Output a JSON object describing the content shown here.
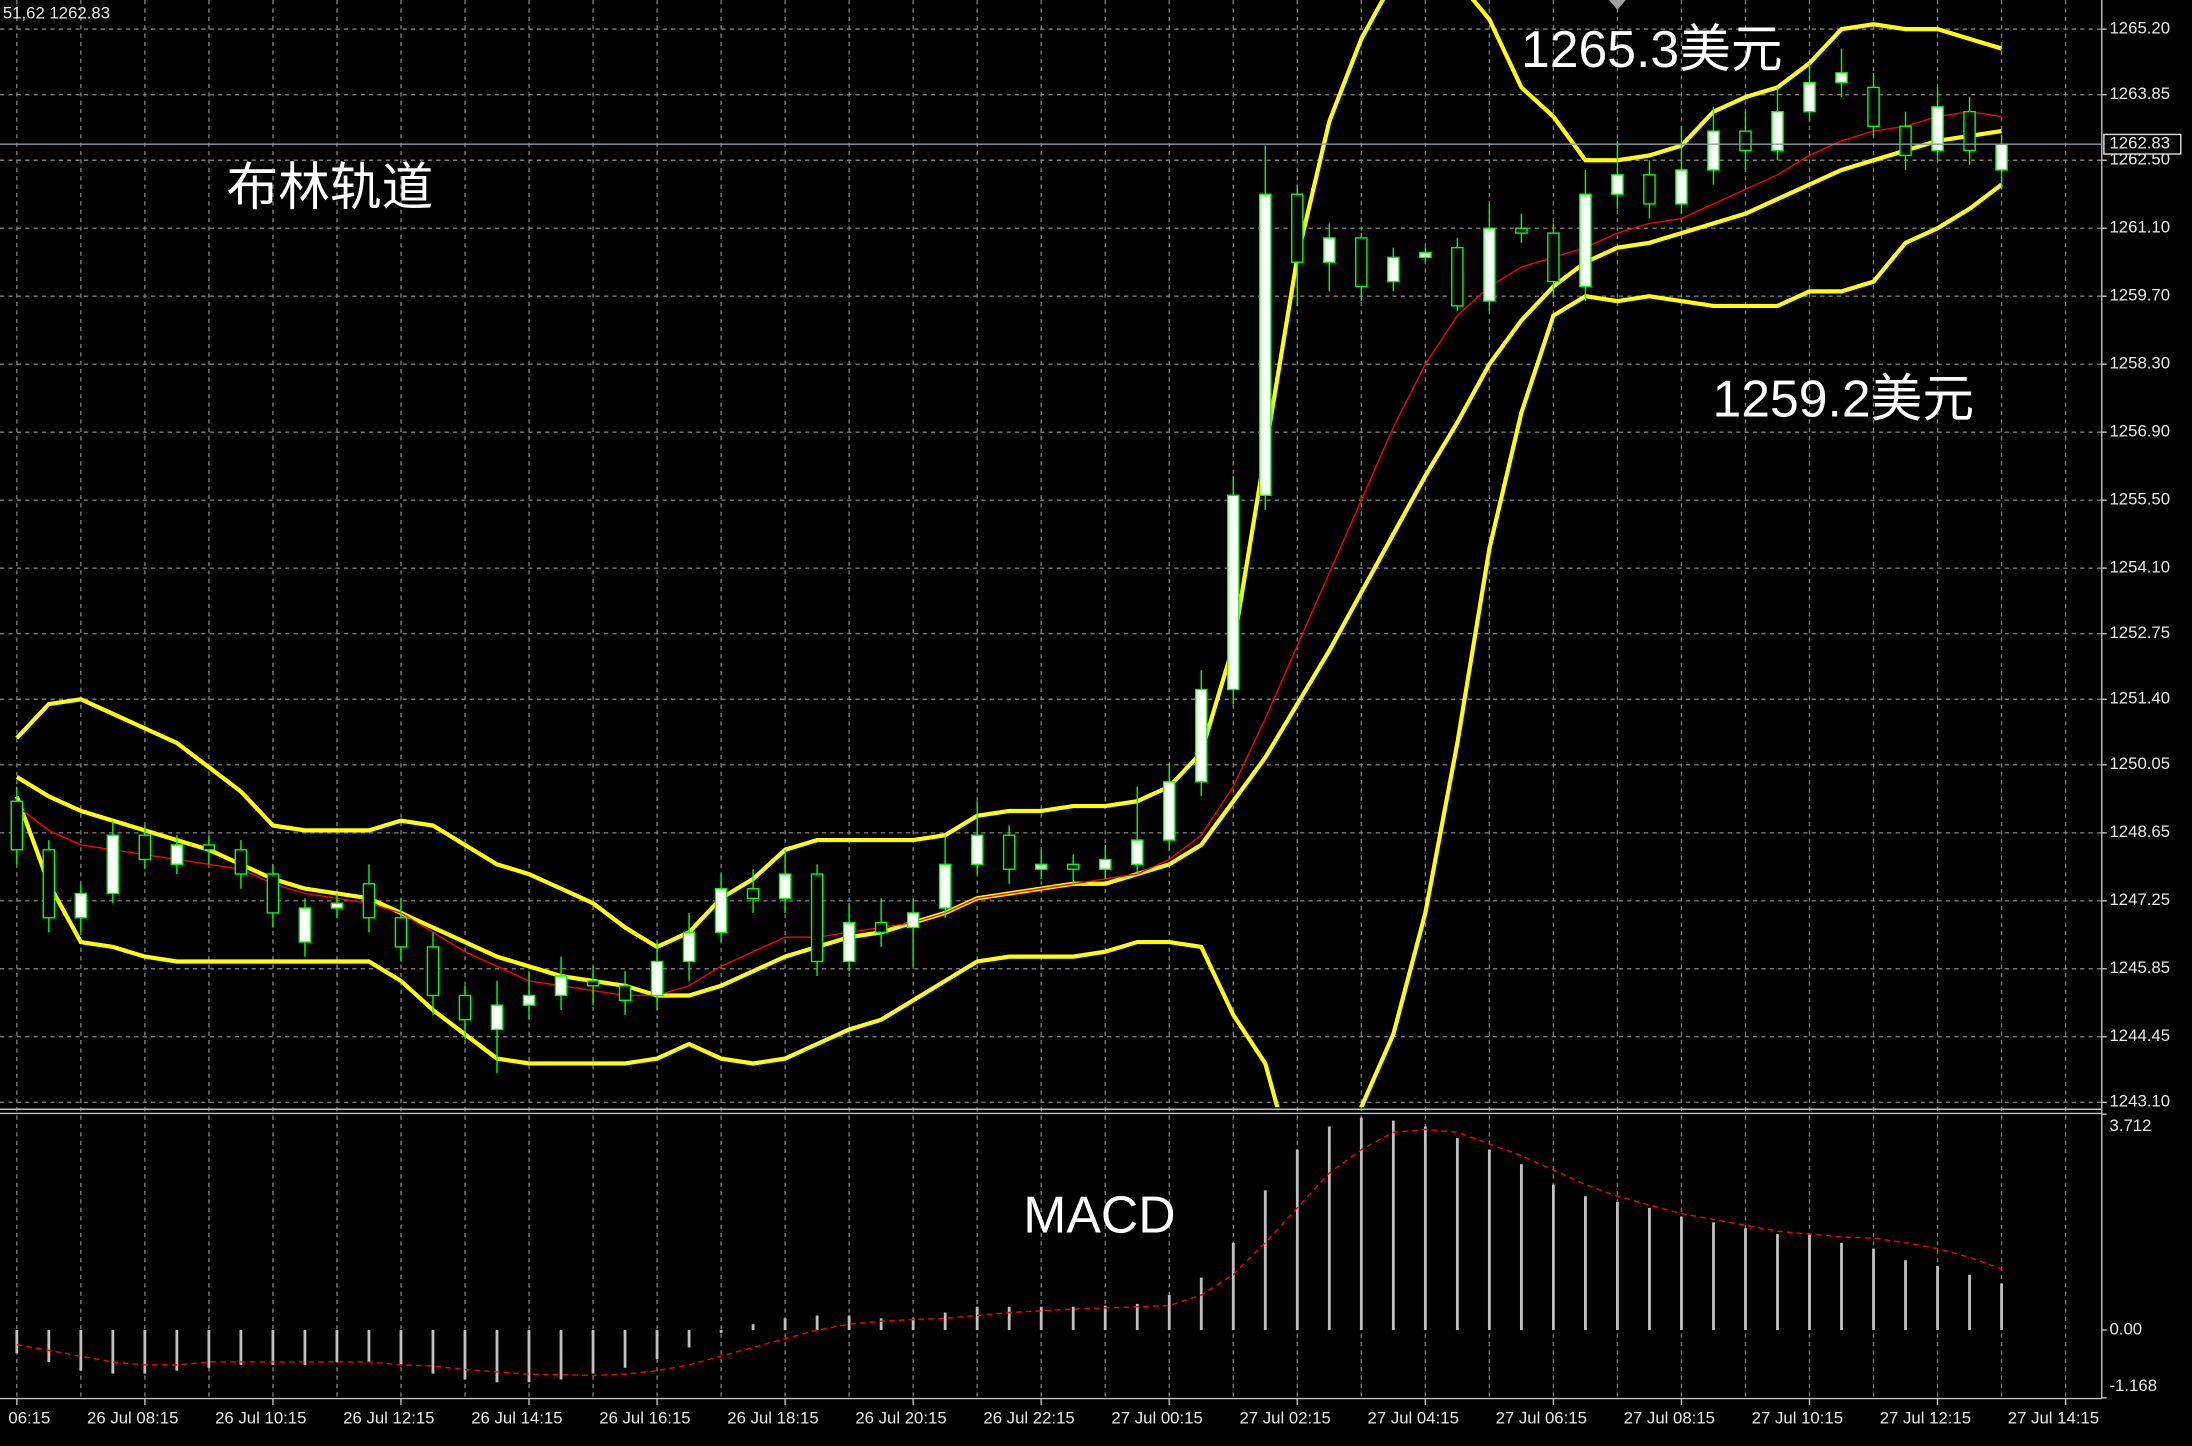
{
  "info": "51,62 1262.83",
  "chart_data": [
    {
      "type": "candlestick",
      "title": "布林轨道",
      "annotations": [
        "1265.3美元",
        "1259.2美元"
      ],
      "categories": [
        "06:15",
        null,
        null,
        null,
        "26 Jul 08:15",
        null,
        null,
        null,
        "26 Jul 10:15",
        null,
        null,
        null,
        "26 Jul 12:15",
        null,
        null,
        null,
        "26 Jul 14:15",
        null,
        null,
        null,
        "26 Jul 16:15",
        null,
        null,
        null,
        "26 Jul 18:15",
        null,
        null,
        null,
        "26 Jul 20:15",
        null,
        null,
        null,
        "26 Jul 22:15",
        null,
        null,
        null,
        "27 Jul 00:15",
        null,
        null,
        null,
        "27 Jul 02:15",
        null,
        null,
        null,
        "27 Jul 04:15",
        null,
        null,
        null,
        "27 Jul 06:15",
        null,
        null,
        null,
        "27 Jul 08:15",
        null,
        null,
        null,
        "27 Jul 10:15",
        null,
        null,
        null,
        "27 Jul 12:15",
        null,
        null,
        null,
        "27 Jul 14:15"
      ],
      "open": [
        1249.3,
        1248.3,
        1246.9,
        1247.4,
        1248.6,
        1248.0,
        1248.4,
        1248.3,
        1247.8,
        1246.4,
        1247.1,
        1247.6,
        1246.9,
        1246.3,
        1245.3,
        1244.6,
        1245.1,
        1245.3,
        1245.6,
        1245.5,
        1245.3,
        1246.0,
        1246.6,
        1247.5,
        1247.3,
        1247.8,
        1246.0,
        1246.8,
        1246.7,
        1247.1,
        1248.0,
        1248.6,
        1247.9,
        1248.0,
        1247.9,
        1248.0,
        1248.5,
        1249.7,
        1251.6,
        1255.6,
        1261.8,
        1260.4,
        1260.9,
        1260.0,
        1260.5,
        1260.7,
        1259.6,
        1261.1,
        1261.0,
        1259.9,
        1261.8,
        1262.2,
        1261.6,
        1262.3,
        1263.1,
        1262.7,
        1263.5,
        1264.1,
        1264.0,
        1263.2,
        1262.7,
        1263.5,
        1262.3,
        null,
        null
      ],
      "high": [
        1249.6,
        1248.5,
        1247.6,
        1248.9,
        1248.8,
        1248.6,
        1248.6,
        1248.5,
        1248.0,
        1247.3,
        1247.4,
        1248.0,
        1247.3,
        1246.6,
        1245.5,
        1245.6,
        1245.8,
        1246.1,
        1245.9,
        1245.8,
        1246.4,
        1247.0,
        1247.8,
        1247.9,
        1248.3,
        1248.0,
        1247.2,
        1247.3,
        1247.3,
        1248.6,
        1249.3,
        1248.8,
        1248.3,
        1248.2,
        1248.4,
        1249.6,
        1250.1,
        1252.0,
        1256.0,
        1262.8,
        1262.0,
        1261.2,
        1261.0,
        1260.7,
        1260.7,
        1260.9,
        1261.6,
        1261.4,
        1261.2,
        1262.3,
        1262.9,
        1262.5,
        1263.2,
        1263.6,
        1263.5,
        1264.0,
        1264.5,
        1264.8,
        1264.3,
        1263.5,
        1264.0,
        1263.8,
        1263.0,
        null,
        null
      ],
      "low": [
        1248.0,
        1246.6,
        1246.6,
        1247.2,
        1247.9,
        1247.8,
        1248.0,
        1247.5,
        1246.7,
        1246.1,
        1246.9,
        1246.6,
        1246.0,
        1244.9,
        1244.4,
        1243.7,
        1244.8,
        1245.0,
        1245.1,
        1244.9,
        1245.0,
        1245.6,
        1246.4,
        1247.0,
        1247.0,
        1245.7,
        1245.8,
        1246.3,
        1245.9,
        1246.9,
        1247.8,
        1247.6,
        1247.7,
        1247.6,
        1247.7,
        1247.8,
        1248.3,
        1249.4,
        1251.3,
        1255.3,
        1259.5,
        1259.8,
        1259.6,
        1259.8,
        1260.4,
        1259.4,
        1259.4,
        1260.8,
        1259.7,
        1259.6,
        1261.5,
        1261.3,
        1261.4,
        1262.0,
        1262.3,
        1262.5,
        1263.3,
        1263.8,
        1263.0,
        1262.3,
        1262.5,
        1262.4,
        1261.9,
        null,
        null
      ],
      "close": [
        1248.3,
        1246.9,
        1247.4,
        1248.6,
        1248.1,
        1248.4,
        1248.3,
        1247.8,
        1247.0,
        1247.1,
        1247.2,
        1246.9,
        1246.3,
        1245.3,
        1244.8,
        1245.1,
        1245.3,
        1245.7,
        1245.5,
        1245.2,
        1246.0,
        1246.6,
        1247.5,
        1247.3,
        1247.8,
        1246.0,
        1246.8,
        1246.6,
        1247.0,
        1248.0,
        1248.6,
        1247.9,
        1248.0,
        1247.9,
        1248.1,
        1248.5,
        1249.7,
        1251.6,
        1255.6,
        1261.8,
        1260.4,
        1260.9,
        1259.9,
        1260.5,
        1260.6,
        1259.5,
        1261.1,
        1261.0,
        1260.0,
        1261.8,
        1262.2,
        1261.6,
        1262.3,
        1263.1,
        1262.7,
        1263.5,
        1264.1,
        1264.3,
        1263.2,
        1262.6,
        1263.6,
        1262.7,
        1262.83,
        null,
        null
      ],
      "candle_colors": {
        "up": "#ffffff",
        "down": "#000000",
        "wick": "#00ff00"
      },
      "bands": {
        "color": "#ffff00",
        "upper": [
          1250.6,
          1251.3,
          1251.4,
          1251.1,
          1250.8,
          1250.5,
          1250.0,
          1249.5,
          1248.8,
          1248.7,
          1248.7,
          1248.7,
          1248.9,
          1248.8,
          1248.4,
          1248.0,
          1247.8,
          1247.5,
          1247.2,
          1246.7,
          1246.3,
          1246.6,
          1247.3,
          1247.7,
          1248.3,
          1248.5,
          1248.5,
          1248.5,
          1248.5,
          1248.6,
          1249.0,
          1249.1,
          1249.1,
          1249.2,
          1249.2,
          1249.3,
          1249.6,
          1250.3,
          1252.5,
          1256.5,
          1260.5,
          1263.3,
          1265.0,
          1266.2,
          1266.6,
          1266.2,
          1265.4,
          1264.0,
          1263.4,
          1262.5,
          1262.5,
          1262.6,
          1262.8,
          1263.5,
          1263.8,
          1264.0,
          1264.5,
          1265.2,
          1265.3,
          1265.2,
          1265.2,
          1265.0,
          1264.8,
          null,
          null
        ],
        "middle": [
          1249.8,
          1249.4,
          1249.1,
          1248.9,
          1248.7,
          1248.5,
          1248.3,
          1248.0,
          1247.7,
          1247.5,
          1247.4,
          1247.3,
          1247.0,
          1246.7,
          1246.4,
          1246.1,
          1245.9,
          1245.7,
          1245.6,
          1245.5,
          1245.3,
          1245.3,
          1245.5,
          1245.8,
          1246.1,
          1246.3,
          1246.5,
          1246.6,
          1246.8,
          1247.0,
          1247.3,
          1247.4,
          1247.5,
          1247.6,
          1247.6,
          1247.8,
          1248.0,
          1248.4,
          1249.3,
          1250.2,
          1251.3,
          1252.4,
          1253.6,
          1254.8,
          1256.0,
          1257.1,
          1258.3,
          1259.2,
          1259.9,
          1260.4,
          1260.7,
          1260.8,
          1261.0,
          1261.2,
          1261.4,
          1261.7,
          1262.0,
          1262.3,
          1262.5,
          1262.7,
          1262.9,
          1263.0,
          1263.1,
          null,
          null
        ],
        "lower": [
          1249.4,
          1247.6,
          1246.4,
          1246.3,
          1246.1,
          1246.0,
          1246.0,
          1246.0,
          1246.0,
          1246.0,
          1246.0,
          1246.0,
          1245.6,
          1245.0,
          1244.5,
          1244.0,
          1243.9,
          1243.9,
          1243.9,
          1243.9,
          1244.0,
          1244.3,
          1244.0,
          1243.9,
          1244.0,
          1244.3,
          1244.6,
          1244.8,
          1245.2,
          1245.6,
          1246.0,
          1246.1,
          1246.1,
          1246.1,
          1246.2,
          1246.4,
          1246.4,
          1246.3,
          1244.9,
          1243.9,
          1241.5,
          1240.8,
          1243.0,
          1244.5,
          1247.0,
          1250.5,
          1254.5,
          1257.3,
          1259.3,
          1259.7,
          1259.6,
          1259.7,
          1259.6,
          1259.5,
          1259.5,
          1259.5,
          1259.8,
          1259.8,
          1260.0,
          1260.8,
          1261.1,
          1261.5,
          1262.0,
          null,
          null
        ]
      },
      "ma": {
        "color": "#ff0000",
        "values": [
          1249.2,
          1248.7,
          1248.4,
          1248.3,
          1248.2,
          1248.1,
          1248.0,
          1247.9,
          1247.6,
          1247.4,
          1247.3,
          1247.2,
          1247.0,
          1246.6,
          1246.2,
          1245.9,
          1245.6,
          1245.5,
          1245.4,
          1245.3,
          1245.3,
          1245.5,
          1245.9,
          1246.2,
          1246.5,
          1246.5,
          1246.6,
          1246.7,
          1246.8,
          1247.0,
          1247.3,
          1247.4,
          1247.5,
          1247.6,
          1247.7,
          1247.8,
          1248.1,
          1248.6,
          1249.6,
          1251.0,
          1252.5,
          1254.0,
          1255.5,
          1257.0,
          1258.3,
          1259.3,
          1259.9,
          1260.3,
          1260.5,
          1260.7,
          1261.0,
          1261.2,
          1261.3,
          1261.6,
          1261.9,
          1262.2,
          1262.6,
          1262.9,
          1263.1,
          1263.2,
          1263.4,
          1263.5,
          1263.4,
          null,
          null
        ]
      },
      "current_price": 1262.83,
      "ylim": [
        1243.0,
        1265.8
      ],
      "yticks": [
        {
          "value": 1265.2,
          "label": "1265.20"
        },
        1263.85,
        {
          "value": 1262.5,
          "label": "1262.50"
        },
        {
          "value": 1261.1,
          "label": "1261.10"
        },
        {
          "value": 1259.7,
          "label": "1259.70"
        },
        {
          "value": 1258.3,
          "label": "1258.30"
        },
        {
          "value": 1256.9,
          "label": "1256.90"
        },
        {
          "value": 1255.5,
          "label": "1255.50"
        },
        {
          "value": 1254.1,
          "label": "1254.10"
        },
        1252.75,
        {
          "value": 1251.4,
          "label": "1251.40"
        },
        1250.05,
        1248.65,
        1247.25,
        1245.85,
        1244.45,
        {
          "value": 1243.1,
          "label": "1243.10"
        }
      ],
      "grid": true
    },
    {
      "type": "macd",
      "title": "MACD",
      "histogram": {
        "color": "#c0c0c0",
        "values": [
          -0.4,
          -0.55,
          -0.7,
          -0.75,
          -0.75,
          -0.7,
          -0.65,
          -0.6,
          -0.6,
          -0.6,
          -0.55,
          -0.55,
          -0.6,
          -0.75,
          -0.85,
          -0.9,
          -0.9,
          -0.85,
          -0.75,
          -0.65,
          -0.5,
          -0.3,
          -0.05,
          0.1,
          0.2,
          0.25,
          0.25,
          0.2,
          0.2,
          0.3,
          0.4,
          0.4,
          0.4,
          0.4,
          0.42,
          0.45,
          0.6,
          0.9,
          1.5,
          2.4,
          3.1,
          3.5,
          3.65,
          3.6,
          3.5,
          3.3,
          3.1,
          2.85,
          2.5,
          2.3,
          2.2,
          2.1,
          1.95,
          1.85,
          1.75,
          1.65,
          1.65,
          1.5,
          1.4,
          1.2,
          1.1,
          0.95,
          0.8,
          null,
          null
        ]
      },
      "signal": {
        "color": "#ff0000",
        "values": [
          -0.25,
          -0.35,
          -0.45,
          -0.55,
          -0.6,
          -0.6,
          -0.55,
          -0.55,
          -0.55,
          -0.55,
          -0.55,
          -0.55,
          -0.6,
          -0.62,
          -0.68,
          -0.72,
          -0.76,
          -0.77,
          -0.78,
          -0.76,
          -0.7,
          -0.6,
          -0.45,
          -0.3,
          -0.15,
          0.0,
          0.1,
          0.15,
          0.18,
          0.2,
          0.25,
          0.3,
          0.33,
          0.36,
          0.38,
          0.4,
          0.42,
          0.6,
          0.95,
          1.5,
          2.1,
          2.7,
          3.1,
          3.4,
          3.45,
          3.4,
          3.2,
          3.0,
          2.75,
          2.5,
          2.3,
          2.15,
          2.0,
          1.9,
          1.8,
          1.7,
          1.65,
          1.6,
          1.58,
          1.5,
          1.4,
          1.25,
          1.05,
          null,
          null
        ]
      },
      "ylim": [
        -1.168,
        3.712
      ],
      "yticks": [
        3.712,
        {
          "value": 0,
          "label": "0.00"
        },
        -1.168
      ]
    }
  ]
}
